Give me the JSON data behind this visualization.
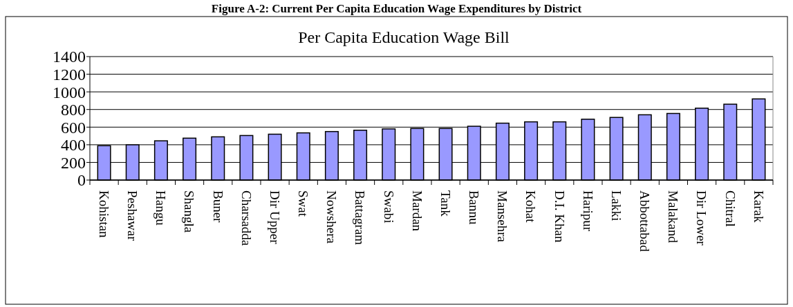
{
  "chart_data": {
    "type": "bar",
    "title": "Per Capita Education Wage Bill",
    "annotations": [
      "Figure A-2: Current Per Capita Education Wage Expenditures by District"
    ],
    "categories": [
      "Kohistan",
      "Peshawar",
      "Hangu",
      "Shangla",
      "Buner",
      "Charsadda",
      "Dir Upper",
      "Swat",
      "Nowshera",
      "Battagram",
      "Swabi",
      "Mardan",
      "Tank",
      "Bannu",
      "Mansehra",
      "Kohat",
      "D.I. Khan",
      "Haripur",
      "Lakki",
      "Abbottabad",
      "Malakand",
      "Dir Lower",
      "Chitral",
      "Karak"
    ],
    "values": [
      390,
      400,
      445,
      475,
      490,
      505,
      520,
      535,
      550,
      565,
      580,
      585,
      585,
      610,
      645,
      660,
      660,
      690,
      710,
      740,
      755,
      815,
      860,
      920
    ],
    "color": "#9999ff",
    "ylim": [
      0,
      1400
    ],
    "yticks": [
      0,
      200,
      400,
      600,
      800,
      1000,
      1200,
      1400
    ],
    "grid": "y"
  }
}
